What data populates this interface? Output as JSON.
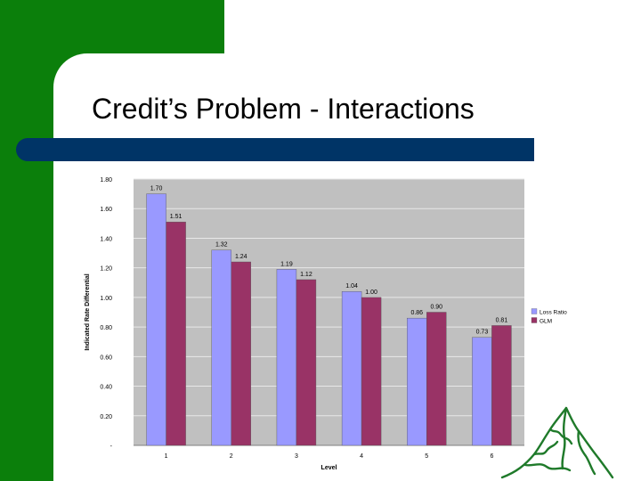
{
  "slide": {
    "title": "Credit’s Problem - Interactions"
  },
  "colors": {
    "frame_green": "#0b7f0b",
    "title_rule": "#003466",
    "plot_bg": "#c0c0c0",
    "series_loss_ratio": "#9999ff",
    "series_glm": "#993366",
    "logo_green": "#1f7a2a"
  },
  "logo": {
    "icon": "mountain-logo-icon"
  },
  "chart_data": {
    "type": "bar",
    "title": "",
    "xlabel": "Level",
    "ylabel": "Indicated Rate Differential",
    "categories": [
      "1",
      "2",
      "3",
      "4",
      "5",
      "6"
    ],
    "ylim": [
      0,
      1.8
    ],
    "yticks": [
      "-",
      "0.20",
      "0.40",
      "0.60",
      "0.80",
      "1.00",
      "1.20",
      "1.40",
      "1.60",
      "1.80"
    ],
    "grid": true,
    "legend": "right",
    "series": [
      {
        "name": "Loss Ratio",
        "values": [
          1.7,
          1.32,
          1.19,
          1.04,
          0.86,
          0.73
        ],
        "labels": [
          "1.70",
          "1.32",
          "1.19",
          "1.04",
          "0.86",
          "0.73"
        ]
      },
      {
        "name": "GLM",
        "values": [
          1.51,
          1.24,
          1.12,
          1.0,
          0.9,
          0.81
        ],
        "labels": [
          "1.51",
          "1.24",
          "1.12",
          "1.00",
          "0.90",
          "0.81"
        ]
      }
    ]
  }
}
